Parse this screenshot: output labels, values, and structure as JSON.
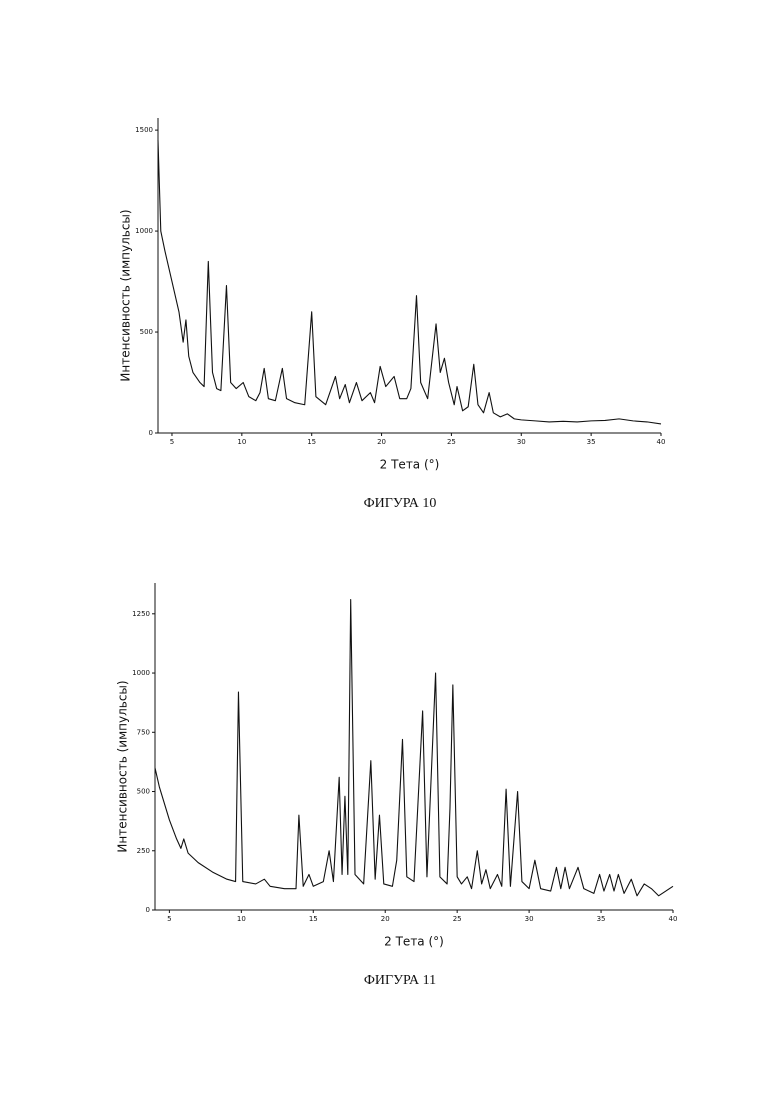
{
  "chart_data": [
    {
      "type": "line",
      "caption": "ФИГУРА 10",
      "xlabel": "2 Тета (°)",
      "ylabel": "Интенсивность (импульсы)",
      "xlim": [
        4,
        40
      ],
      "ylim": [
        0,
        1560
      ],
      "xticks": [
        5,
        10,
        15,
        20,
        25,
        30,
        35,
        40
      ],
      "yticks": [
        0,
        500,
        1000,
        1500
      ],
      "series": [
        {
          "color": "#111111",
          "x": [
            4.0,
            4.2,
            4.5,
            5.0,
            5.5,
            5.8,
            6.0,
            6.2,
            6.5,
            7.0,
            7.3,
            7.6,
            7.9,
            8.2,
            8.5,
            8.9,
            9.2,
            9.6,
            10.1,
            10.5,
            11.0,
            11.3,
            11.6,
            11.9,
            12.4,
            12.9,
            13.2,
            13.8,
            14.5,
            15.0,
            15.3,
            16.0,
            16.7,
            17.0,
            17.4,
            17.7,
            18.2,
            18.6,
            19.2,
            19.5,
            19.9,
            20.3,
            20.9,
            21.3,
            21.8,
            22.1,
            22.5,
            22.8,
            23.3,
            23.9,
            24.2,
            24.5,
            24.8,
            25.2,
            25.4,
            25.8,
            26.2,
            26.6,
            26.9,
            27.3,
            27.7,
            28.0,
            28.5,
            29.0,
            29.5,
            30,
            31,
            32,
            33,
            34,
            35,
            36,
            37,
            38,
            39,
            40
          ],
          "values": [
            1450,
            1000,
            900,
            750,
            600,
            450,
            560,
            380,
            300,
            250,
            230,
            850,
            300,
            220,
            210,
            730,
            250,
            220,
            250,
            180,
            160,
            200,
            320,
            170,
            160,
            320,
            170,
            150,
            140,
            600,
            180,
            140,
            280,
            170,
            240,
            150,
            250,
            160,
            200,
            150,
            330,
            230,
            280,
            170,
            170,
            220,
            680,
            250,
            170,
            540,
            300,
            370,
            250,
            140,
            230,
            110,
            130,
            340,
            140,
            100,
            200,
            100,
            80,
            95,
            70,
            65,
            60,
            55,
            58,
            55,
            60,
            62,
            70,
            60,
            55,
            45
          ]
        }
      ]
    },
    {
      "type": "line",
      "caption": "ФИГУРА 11",
      "xlabel": "2 Тета (°)",
      "ylabel": "Интенсивность (импульсы)",
      "xlim": [
        4,
        40
      ],
      "ylim": [
        0,
        1380
      ],
      "xticks": [
        5,
        10,
        15,
        20,
        25,
        30,
        35,
        40
      ],
      "yticks": [
        0,
        250,
        500,
        750,
        1000,
        1250
      ],
      "series": [
        {
          "color": "#111111",
          "x": [
            4.0,
            4.3,
            5,
            5.5,
            5.8,
            6.0,
            6.3,
            7,
            8,
            9,
            9.6,
            9.8,
            10.1,
            11,
            11.6,
            12,
            13,
            13.8,
            14.0,
            14.3,
            14.7,
            15,
            15.7,
            16.1,
            16.4,
            16.8,
            17.0,
            17.2,
            17.4,
            17.6,
            17.9,
            18.5,
            19.0,
            19.3,
            19.6,
            19.9,
            20.5,
            20.8,
            21.2,
            21.5,
            22,
            22.6,
            22.9,
            23.5,
            23.8,
            24.3,
            24.5,
            24.7,
            25.0,
            25.3,
            25.7,
            26.0,
            26.4,
            26.7,
            27.0,
            27.3,
            27.8,
            28.1,
            28.4,
            28.7,
            29.2,
            29.5,
            30.0,
            30.4,
            30.8,
            31.5,
            31.9,
            32.2,
            32.5,
            32.8,
            33.4,
            33.8,
            34.5,
            34.9,
            35.2,
            35.6,
            35.9,
            36.2,
            36.6,
            37.1,
            37.5,
            38,
            38.5,
            39,
            39.5,
            40
          ],
          "values": [
            600,
            520,
            380,
            300,
            260,
            300,
            240,
            200,
            160,
            130,
            120,
            920,
            120,
            110,
            130,
            100,
            90,
            90,
            400,
            100,
            150,
            100,
            120,
            250,
            120,
            560,
            150,
            480,
            150,
            1310,
            150,
            110,
            630,
            130,
            400,
            110,
            100,
            210,
            720,
            140,
            120,
            840,
            140,
            1000,
            140,
            110,
            430,
            950,
            140,
            110,
            140,
            90,
            250,
            110,
            170,
            90,
            150,
            100,
            510,
            100,
            500,
            120,
            90,
            210,
            90,
            80,
            180,
            90,
            180,
            90,
            180,
            90,
            70,
            150,
            80,
            150,
            80,
            150,
            70,
            130,
            60,
            110,
            90,
            60,
            80,
            100
          ]
        }
      ]
    }
  ]
}
